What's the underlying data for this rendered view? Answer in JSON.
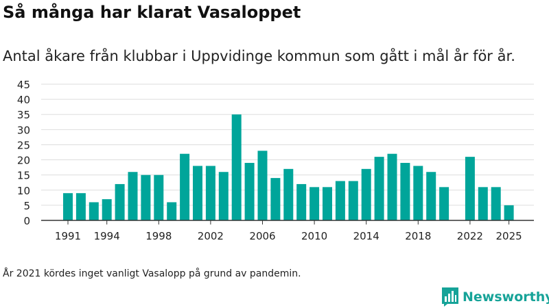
{
  "header": {
    "title": "Så många har klarat Vasaloppet",
    "subtitle": "Antal åkare från klubbar i Uppvidinge kommun som gått i mål år för år."
  },
  "footer": {
    "note": "År 2021 kördes inget vanligt Vasalopp på grund av pandemin.",
    "brand": "Newsworthy"
  },
  "colors": {
    "bar": "#00a59a",
    "brand": "#16a398",
    "grid": "#dddddd",
    "axis": "#333333"
  },
  "chart_data": {
    "type": "bar",
    "title": "Så många har klarat Vasaloppet",
    "xlabel": "",
    "ylabel": "",
    "ylim": [
      0,
      45
    ],
    "yticks": [
      0,
      5,
      10,
      15,
      20,
      25,
      30,
      35,
      40,
      45
    ],
    "xticks": [
      1991,
      1994,
      1998,
      2002,
      2006,
      2010,
      2014,
      2018,
      2022,
      2025
    ],
    "grid": true,
    "categories": [
      1991,
      1992,
      1993,
      1994,
      1995,
      1996,
      1997,
      1998,
      1999,
      2000,
      2001,
      2002,
      2003,
      2004,
      2005,
      2006,
      2007,
      2008,
      2009,
      2010,
      2011,
      2012,
      2013,
      2014,
      2015,
      2016,
      2017,
      2018,
      2019,
      2020,
      2021,
      2022,
      2023,
      2024,
      2025
    ],
    "values": [
      9,
      9,
      6,
      7,
      12,
      16,
      15,
      15,
      6,
      22,
      18,
      18,
      16,
      35,
      19,
      23,
      14,
      17,
      12,
      11,
      11,
      13,
      13,
      17,
      21,
      22,
      19,
      18,
      16,
      11,
      null,
      21,
      11,
      11,
      5
    ]
  }
}
